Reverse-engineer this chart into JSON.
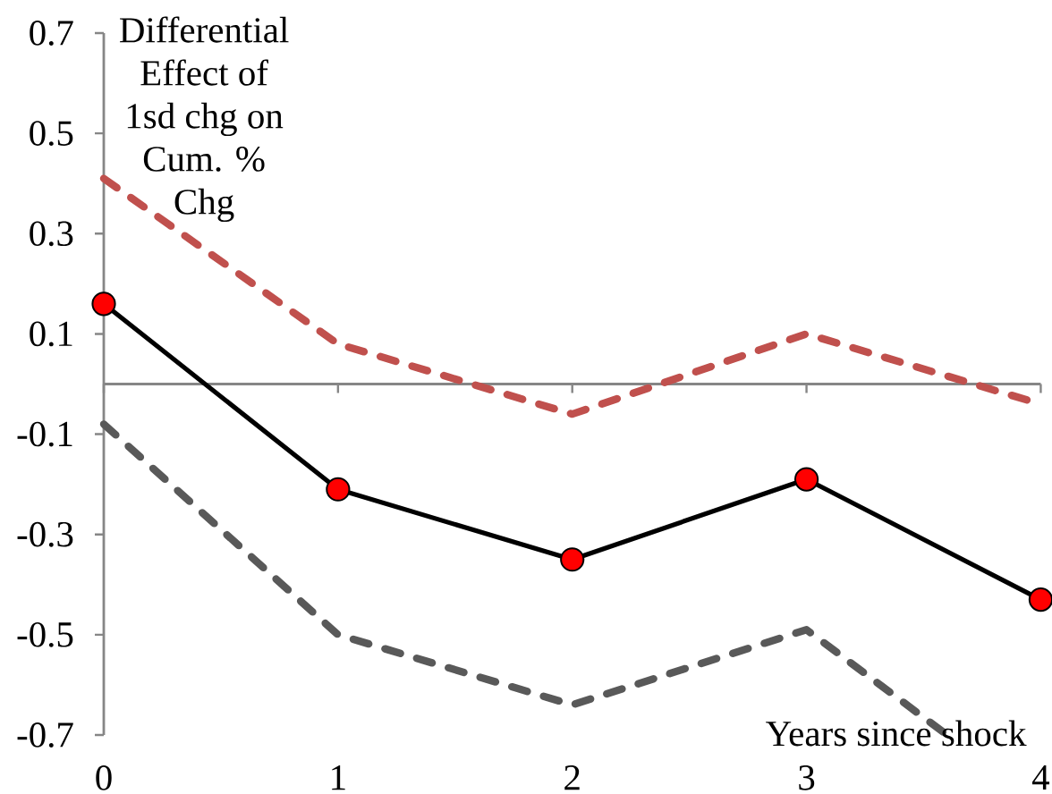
{
  "chart_data": {
    "type": "line",
    "xlabel": "Years since shock",
    "ylabel": "Differential Effect of 1sd chg on Cum. % Chg",
    "x": [
      0,
      1,
      2,
      3,
      4
    ],
    "xlim": [
      0,
      4
    ],
    "xticks": [
      0,
      1,
      2,
      3,
      4
    ],
    "ylim": [
      -0.7,
      0.7
    ],
    "yticks": [
      -0.7,
      -0.5,
      -0.3,
      -0.1,
      0.1,
      0.3,
      0.5,
      0.7
    ],
    "series": [
      {
        "color": "#c0504d",
        "line_style": "dashed",
        "marker": "none",
        "values": [
          0.41,
          0.08,
          -0.06,
          0.1,
          -0.04
        ]
      },
      {
        "color": "#595959",
        "line_style": "dashed",
        "marker": "none",
        "x": [
          0,
          1,
          2,
          3,
          3.6
        ],
        "values": [
          -0.08,
          -0.5,
          -0.64,
          -0.49,
          -0.7
        ]
      },
      {
        "color": "#000000",
        "line_style": "solid",
        "marker": "circle",
        "colors": [
          "#ff0000",
          "#ff0000",
          "#ff0000",
          "#ff0000",
          "#ff0000"
        ],
        "values": [
          0.16,
          -0.21,
          -0.35,
          -0.19,
          -0.43
        ]
      }
    ]
  }
}
